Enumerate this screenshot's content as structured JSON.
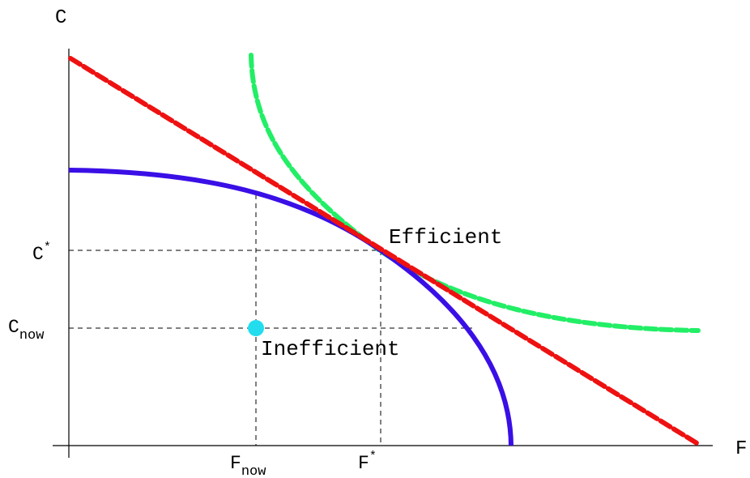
{
  "axes": {
    "x_label": "F",
    "y_label": "C"
  },
  "ticks": {
    "x": [
      {
        "main": "F",
        "mod": "now",
        "mod_type": "sub"
      },
      {
        "main": "F",
        "mod": "*",
        "mod_type": "sup"
      }
    ],
    "y": [
      {
        "main": "C",
        "mod": "*",
        "mod_type": "sup"
      },
      {
        "main": "C",
        "mod": "now",
        "mod_type": "sub"
      }
    ]
  },
  "annotations": {
    "efficient": "Efficient",
    "inefficient": "Inefficient"
  },
  "colors": {
    "frontier": "#3a0fe6",
    "budget_line": "#ee1111",
    "indifference_curve": "#22ee66",
    "inefficient_point": "#22ddee",
    "guides": "#000000"
  },
  "curves": {
    "frontier": "production possibility frontier (solid, concave)",
    "budget_line": "tangent line (dashed, straight)",
    "indifference_curve": "indifference curve (dashed, convex)"
  }
}
